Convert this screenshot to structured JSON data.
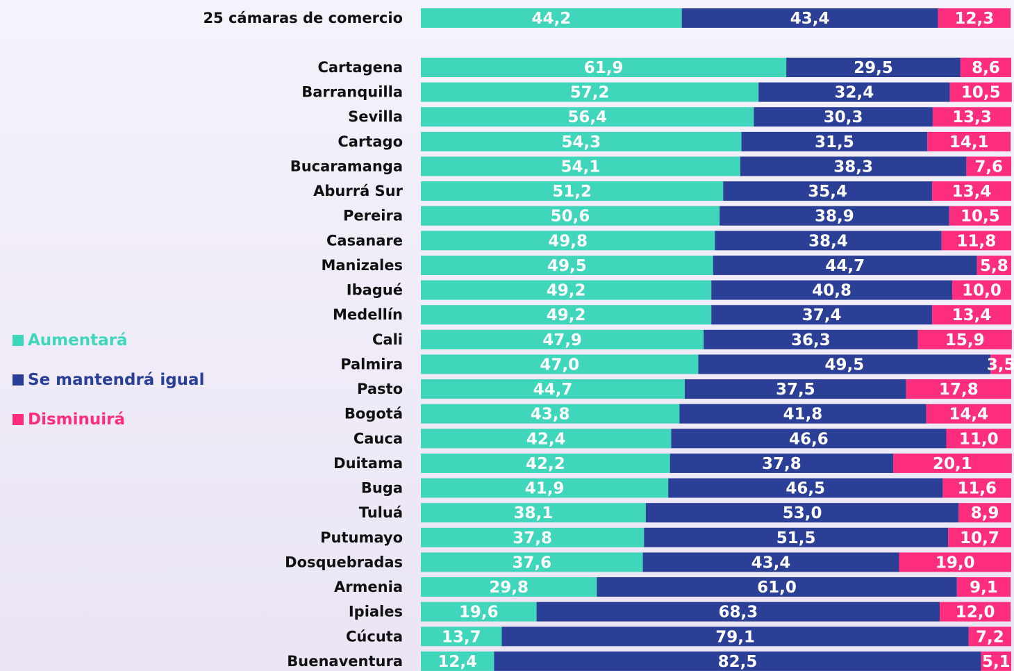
{
  "chart_data": {
    "type": "stacked_bar_horizontal",
    "categories": [
      "25 cámaras de comercio",
      "Cartagena",
      "Barranquilla",
      "Sevilla",
      "Cartago",
      "Bucaramanga",
      "Aburrá Sur",
      "Pereira",
      "Casanare",
      "Manizales",
      "Ibagué",
      "Medellín",
      "Cali",
      "Palmira",
      "Pasto",
      "Bogotá",
      "Cauca",
      "Duitama",
      "Buga",
      "Tuluá",
      "Putumayo",
      "Dosquebradas",
      "Armenia",
      "Ipiales",
      "Cúcuta",
      "Buenaventura"
    ],
    "series": [
      {
        "name": "Aumentará",
        "color": "#3fd6bb",
        "values": [
          44.2,
          61.9,
          57.2,
          56.4,
          54.3,
          54.1,
          51.2,
          50.6,
          49.8,
          49.5,
          49.2,
          49.2,
          47.9,
          47.0,
          44.7,
          43.8,
          42.4,
          42.2,
          41.9,
          38.1,
          37.8,
          37.6,
          29.8,
          19.6,
          13.7,
          12.4
        ],
        "value_labels": [
          "44,2",
          "61,9",
          "57,2",
          "56,4",
          "54,3",
          "54,1",
          "51,2",
          "50,6",
          "49,8",
          "49,5",
          "49,2",
          "49,2",
          "47,9",
          "47,0",
          "44,7",
          "43,8",
          "42,4",
          "42,2",
          "41,9",
          "38,1",
          "37,8",
          "37,6",
          "29,8",
          "19,6",
          "13,7",
          "12,4"
        ]
      },
      {
        "name": "Se mantendrá igual",
        "color": "#2b3f97",
        "values": [
          43.4,
          29.5,
          32.4,
          30.3,
          31.5,
          38.3,
          35.4,
          38.9,
          38.4,
          44.7,
          40.8,
          37.4,
          36.3,
          49.5,
          37.5,
          41.8,
          46.6,
          37.8,
          46.5,
          53.0,
          51.5,
          43.4,
          61.0,
          68.3,
          79.1,
          82.5
        ],
        "value_labels": [
          "43,4",
          "29,5",
          "32,4",
          "30,3",
          "31,5",
          "38,3",
          "35,4",
          "38,9",
          "38,4",
          "44,7",
          "40,8",
          "37,4",
          "36,3",
          "49,5",
          "37,5",
          "41,8",
          "46,6",
          "37,8",
          "46,5",
          "53,0",
          "51,5",
          "43,4",
          "61,0",
          "68,3",
          "79,1",
          "82,5"
        ]
      },
      {
        "name": "Disminuirá",
        "color": "#ff2d7e",
        "values": [
          12.3,
          8.6,
          10.5,
          13.3,
          14.1,
          7.6,
          13.4,
          10.5,
          11.8,
          5.8,
          10.0,
          13.4,
          15.9,
          3.5,
          17.8,
          14.4,
          11.0,
          20.1,
          11.6,
          8.9,
          10.7,
          19.0,
          9.1,
          12.0,
          7.2,
          5.1
        ],
        "value_labels": [
          "12,3",
          "8,6",
          "10,5",
          "13,3",
          "14,1",
          "7,6",
          "13,4",
          "10,5",
          "11,8",
          "5,8",
          "10,0",
          "13,4",
          "15,9",
          "3,5",
          "17,8",
          "14,4",
          "11,0",
          "20,1",
          "11,6",
          "8,9",
          "10,7",
          "19,0",
          "9,1",
          "12,0",
          "7,2",
          "5,1"
        ]
      }
    ]
  }
}
